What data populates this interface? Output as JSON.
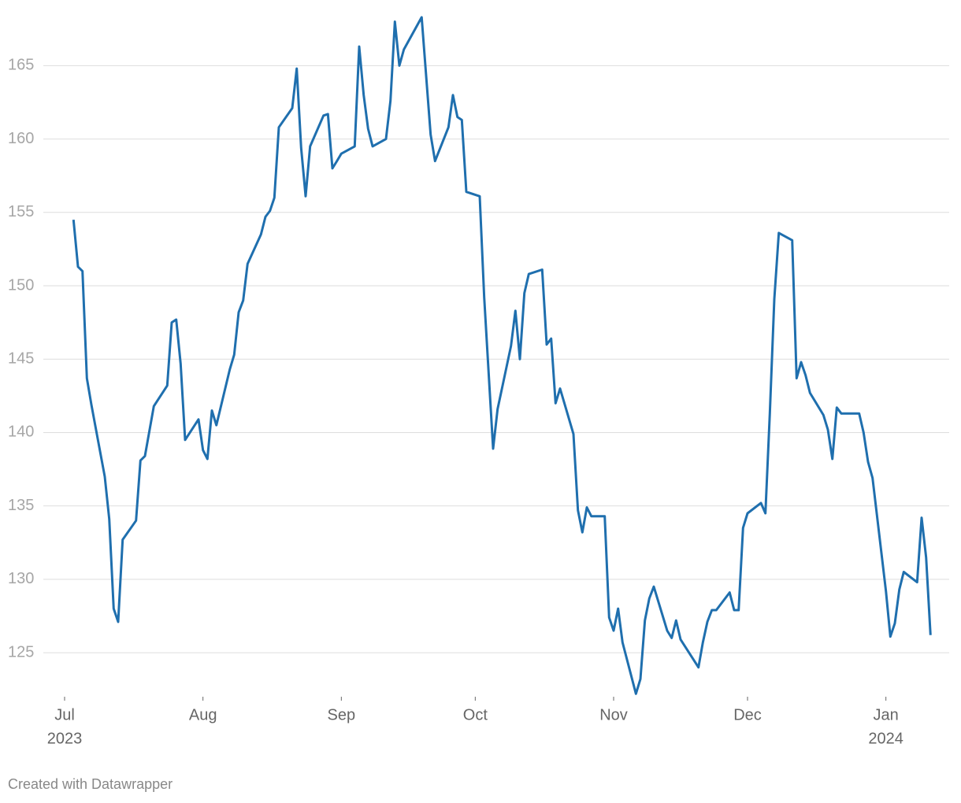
{
  "chart_data": {
    "type": "line",
    "credit": "Created with Datawrapper",
    "x": [
      "2023-07-03",
      "2023-07-04",
      "2023-07-05",
      "2023-07-06",
      "2023-07-07",
      "2023-07-10",
      "2023-07-11",
      "2023-07-12",
      "2023-07-13",
      "2023-07-14",
      "2023-07-17",
      "2023-07-18",
      "2023-07-19",
      "2023-07-21",
      "2023-07-24",
      "2023-07-25",
      "2023-07-26",
      "2023-07-27",
      "2023-07-28",
      "2023-07-31",
      "2023-08-01",
      "2023-08-02",
      "2023-08-03",
      "2023-08-04",
      "2023-08-07",
      "2023-08-08",
      "2023-08-09",
      "2023-08-10",
      "2023-08-11",
      "2023-08-14",
      "2023-08-15",
      "2023-08-16",
      "2023-08-17",
      "2023-08-18",
      "2023-08-21",
      "2023-08-22",
      "2023-08-23",
      "2023-08-24",
      "2023-08-25",
      "2023-08-28",
      "2023-08-29",
      "2023-08-30",
      "2023-08-31",
      "2023-09-01",
      "2023-09-04",
      "2023-09-05",
      "2023-09-06",
      "2023-09-07",
      "2023-09-08",
      "2023-09-11",
      "2023-09-12",
      "2023-09-13",
      "2023-09-14",
      "2023-09-15",
      "2023-09-19",
      "2023-09-21",
      "2023-09-22",
      "2023-09-25",
      "2023-09-26",
      "2023-09-27",
      "2023-09-28",
      "2023-09-29",
      "2023-10-02",
      "2023-10-03",
      "2023-10-05",
      "2023-10-06",
      "2023-10-09",
      "2023-10-10",
      "2023-10-11",
      "2023-10-12",
      "2023-10-13",
      "2023-10-16",
      "2023-10-17",
      "2023-10-18",
      "2023-10-19",
      "2023-10-20",
      "2023-10-23",
      "2023-10-24",
      "2023-10-25",
      "2023-10-26",
      "2023-10-27",
      "2023-10-30",
      "2023-10-31",
      "2023-11-01",
      "2023-11-02",
      "2023-11-03",
      "2023-11-06",
      "2023-11-07",
      "2023-11-08",
      "2023-11-09",
      "2023-11-10",
      "2023-11-13",
      "2023-11-14",
      "2023-11-15",
      "2023-11-16",
      "2023-11-20",
      "2023-11-21",
      "2023-11-22",
      "2023-11-23",
      "2023-11-24",
      "2023-11-27",
      "2023-11-28",
      "2023-11-29",
      "2023-11-30",
      "2023-12-01",
      "2023-12-04",
      "2023-12-05",
      "2023-12-06",
      "2023-12-07",
      "2023-12-08",
      "2023-12-11",
      "2023-12-12",
      "2023-12-13",
      "2023-12-14",
      "2023-12-15",
      "2023-12-18",
      "2023-12-19",
      "2023-12-20",
      "2023-12-21",
      "2023-12-22",
      "2023-12-26",
      "2023-12-27",
      "2023-12-28",
      "2023-12-29",
      "2024-01-01",
      "2024-01-02",
      "2024-01-03",
      "2024-01-04",
      "2024-01-05",
      "2024-01-08",
      "2024-01-09",
      "2024-01-10",
      "2024-01-11"
    ],
    "series": [
      {
        "color": "#1f6fae",
        "values": [
          154.5,
          151.3,
          151.0,
          143.7,
          141.9,
          137.0,
          134.1,
          128.0,
          127.1,
          132.7,
          134.0,
          138.1,
          138.4,
          141.8,
          143.2,
          147.5,
          147.7,
          144.7,
          139.5,
          140.9,
          138.8,
          138.2,
          141.5,
          140.5,
          144.3,
          145.3,
          148.2,
          149.0,
          151.5,
          153.5,
          154.7,
          155.1,
          156.0,
          160.8,
          162.1,
          164.8,
          159.4,
          156.1,
          159.5,
          161.6,
          161.7,
          158.0,
          158.5,
          159.0,
          159.5,
          166.3,
          163.0,
          160.7,
          159.5,
          160.0,
          162.6,
          168.0,
          165.0,
          166.1,
          168.3,
          160.3,
          158.5,
          160.8,
          163.0,
          161.5,
          161.3,
          156.4,
          156.1,
          149.2,
          138.9,
          141.6,
          145.9,
          148.3,
          145.0,
          149.5,
          150.8,
          151.1,
          146.0,
          146.4,
          142.0,
          143.0,
          139.9,
          134.7,
          133.2,
          134.9,
          134.3,
          134.3,
          127.4,
          126.5,
          128.0,
          125.7,
          122.2,
          123.2,
          127.2,
          128.7,
          129.5,
          126.5,
          126.0,
          127.2,
          125.9,
          124.0,
          125.7,
          127.1,
          127.9,
          127.9,
          129.1,
          127.9,
          127.9,
          133.5,
          134.5,
          135.2,
          134.5,
          141.3,
          149.1,
          153.6,
          153.1,
          143.7,
          144.8,
          143.9,
          142.7,
          141.2,
          140.2,
          138.2,
          141.7,
          141.3,
          141.3,
          140.0,
          138.0,
          136.9,
          129.2,
          126.1,
          127.0,
          129.3,
          130.5,
          129.8,
          134.2,
          131.5,
          126.2
        ]
      }
    ],
    "xlim": [
      "2023-07-01",
      "2024-01-12"
    ],
    "xticks": [
      {
        "value": "2023-07-01",
        "label": "Jul"
      },
      {
        "value": "2023-08-01",
        "label": "Aug"
      },
      {
        "value": "2023-09-01",
        "label": "Sep"
      },
      {
        "value": "2023-10-01",
        "label": "Oct"
      },
      {
        "value": "2023-11-01",
        "label": "Nov"
      },
      {
        "value": "2023-12-01",
        "label": "Dec"
      },
      {
        "value": "2024-01-01",
        "label": "Jan"
      }
    ],
    "year_labels": [
      {
        "value": "2023-07-01",
        "label": "2023"
      },
      {
        "value": "2024-01-01",
        "label": "2024"
      }
    ],
    "ylim": [
      122,
      168.4
    ],
    "yticks": [
      125,
      130,
      135,
      140,
      145,
      150,
      155,
      160,
      165
    ],
    "grid": true
  }
}
